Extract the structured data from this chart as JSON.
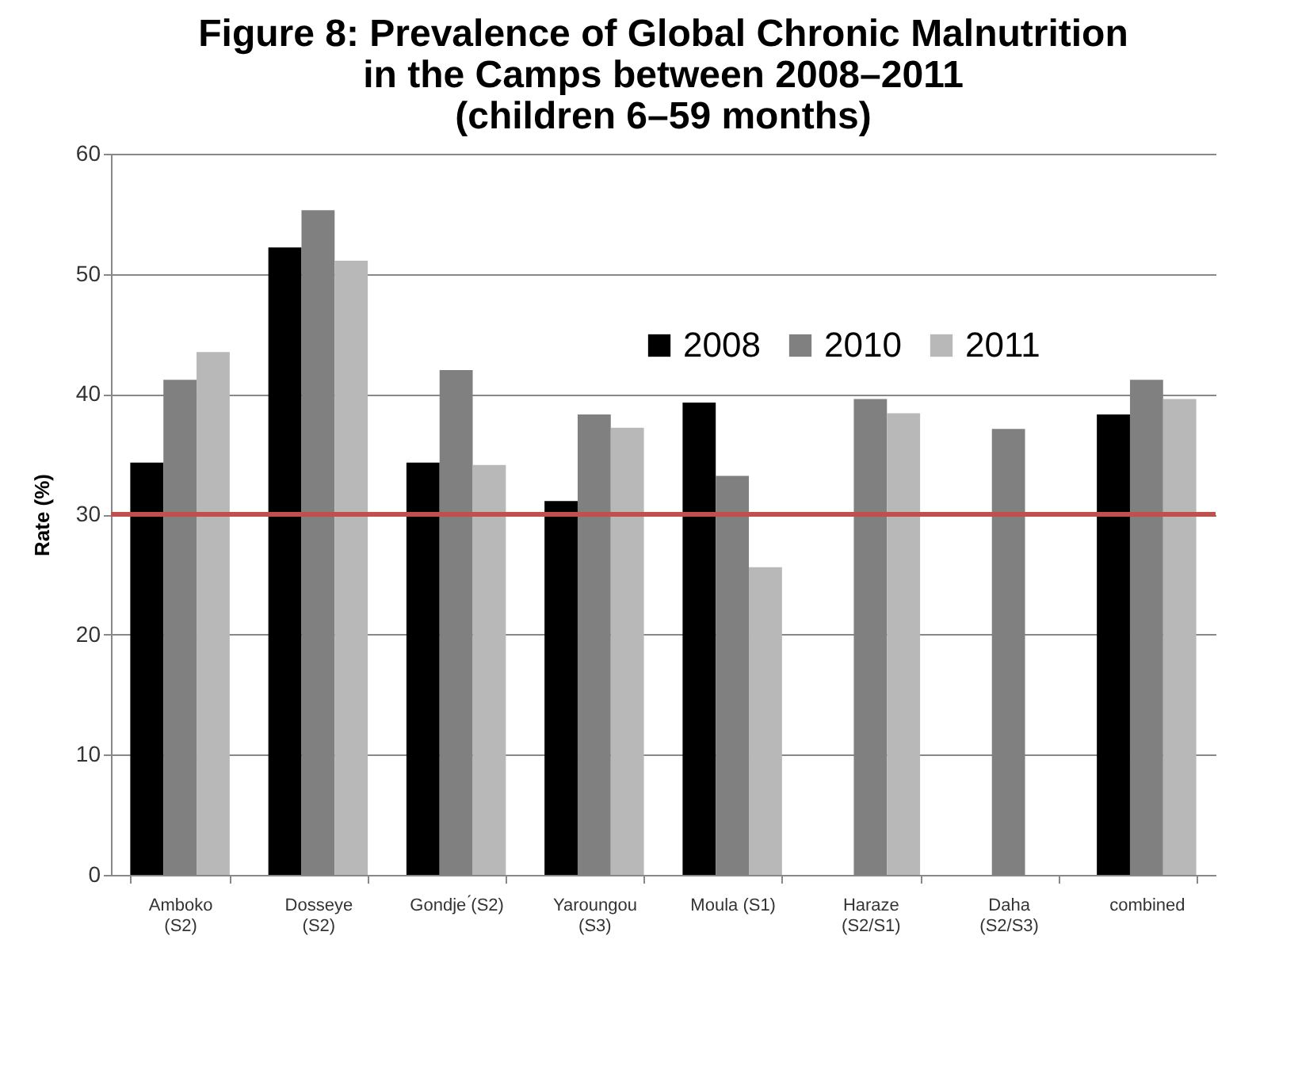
{
  "chart_data": {
    "type": "bar",
    "title": "Figure 8: Prevalence of Global Chronic Malnutrition\nin the Camps between 2008–2011\n(children 6–59 months)",
    "ylabel": "Rate (%)",
    "categories": [
      "Amboko\n(S2)",
      "Dosseye\n(S2)",
      "Gondje ́(S2)",
      "Yaroungou\n(S3)",
      "Moula (S1)",
      "Haraze\n(S2/S1)",
      "Daha\n(S2/S3)",
      "combined"
    ],
    "series": [
      {
        "name": "2008",
        "color": "#000000",
        "values": [
          34.3,
          52.2,
          34.3,
          31.1,
          39.3,
          null,
          null,
          38.3
        ]
      },
      {
        "name": "2010",
        "color": "#808080",
        "values": [
          41.2,
          55.3,
          42.0,
          38.3,
          33.2,
          39.6,
          37.1,
          41.2
        ]
      },
      {
        "name": "2011",
        "color": "#b8b8b8",
        "values": [
          43.5,
          51.1,
          34.1,
          37.2,
          25.6,
          38.4,
          null,
          39.6
        ]
      }
    ],
    "ylim": [
      0,
      60
    ],
    "yticks": [
      0,
      10,
      20,
      30,
      40,
      50,
      60
    ],
    "grid": "y",
    "legend": "top right",
    "ref_lines": [
      {
        "axis": "y",
        "value": 30,
        "color": "#c0504d"
      }
    ]
  }
}
